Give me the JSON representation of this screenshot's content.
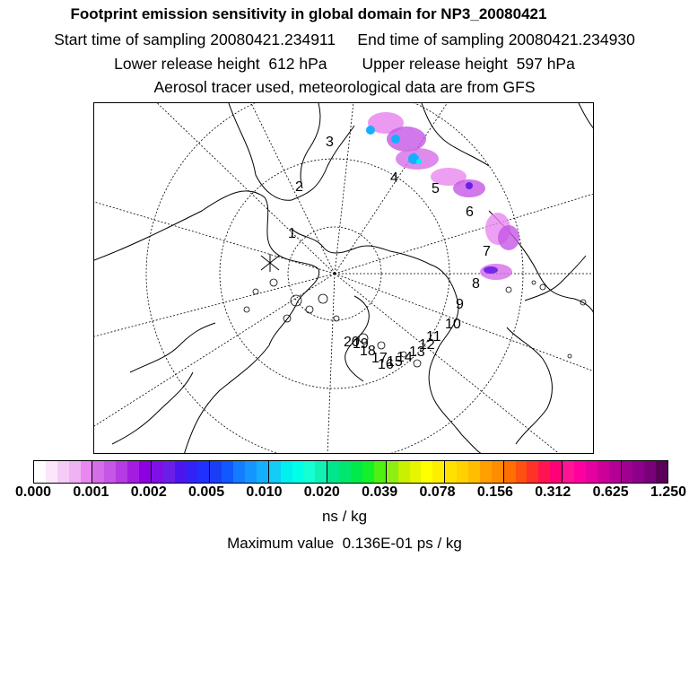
{
  "header": {
    "title": "Footprint emission sensitivity in global domain for NP3_20080421",
    "sampling_line": "Start time of sampling 20080421.234911     End time of sampling 20080421.234930",
    "height_line": "Lower release height  612 hPa        Upper release height  597 hPa",
    "tracer_line": "Aerosol tracer used, meteorological data are from GFS"
  },
  "map": {
    "projection": "polar-stereographic-north",
    "trajectory_labels": [
      "1",
      "2",
      "3",
      "4",
      "5",
      "6",
      "7",
      "8",
      "9",
      "10",
      "11",
      "12",
      "13",
      "14",
      "15",
      "16",
      "17",
      "18",
      "19",
      "20"
    ]
  },
  "colorbar": {
    "tick_labels": [
      "0.000",
      "0.001",
      "0.002",
      "0.005",
      "0.010",
      "0.020",
      "0.039",
      "0.078",
      "0.156",
      "0.312",
      "0.625",
      "1.250"
    ],
    "units": "ns / kg",
    "colors": [
      "#ffffff",
      "#fbe6fb",
      "#f5ccf7",
      "#f0b2f3",
      "#e887ef",
      "#d46ee8",
      "#c656e6",
      "#b53be3",
      "#a31ce0",
      "#8d00e0",
      "#7e10e6",
      "#6a1ee8",
      "#4b16ee",
      "#3322f6",
      "#2030ff",
      "#1a3ef5",
      "#1158ff",
      "#137cff",
      "#1596ff",
      "#14b0ff",
      "#12cdf5",
      "#00f0f0",
      "#00ffe6",
      "#14ffd2",
      "#12f0b4",
      "#00e68c",
      "#00e66e",
      "#00eb4a",
      "#14f02a",
      "#50f014",
      "#8cf014",
      "#c8f000",
      "#e6f500",
      "#ffff00",
      "#ffee00",
      "#ffe100",
      "#ffd200",
      "#ffbe00",
      "#ffa000",
      "#ff8c00",
      "#ff6e00",
      "#ff5014",
      "#ff3228",
      "#ff1450",
      "#ff0078",
      "#ff1496",
      "#ff00a0",
      "#e600a0",
      "#cc0099",
      "#b40096",
      "#a00090",
      "#8c008c",
      "#780078",
      "#5a005a"
    ],
    "max_value_text": "Maximum value  0.136E-01 ps / kg"
  }
}
